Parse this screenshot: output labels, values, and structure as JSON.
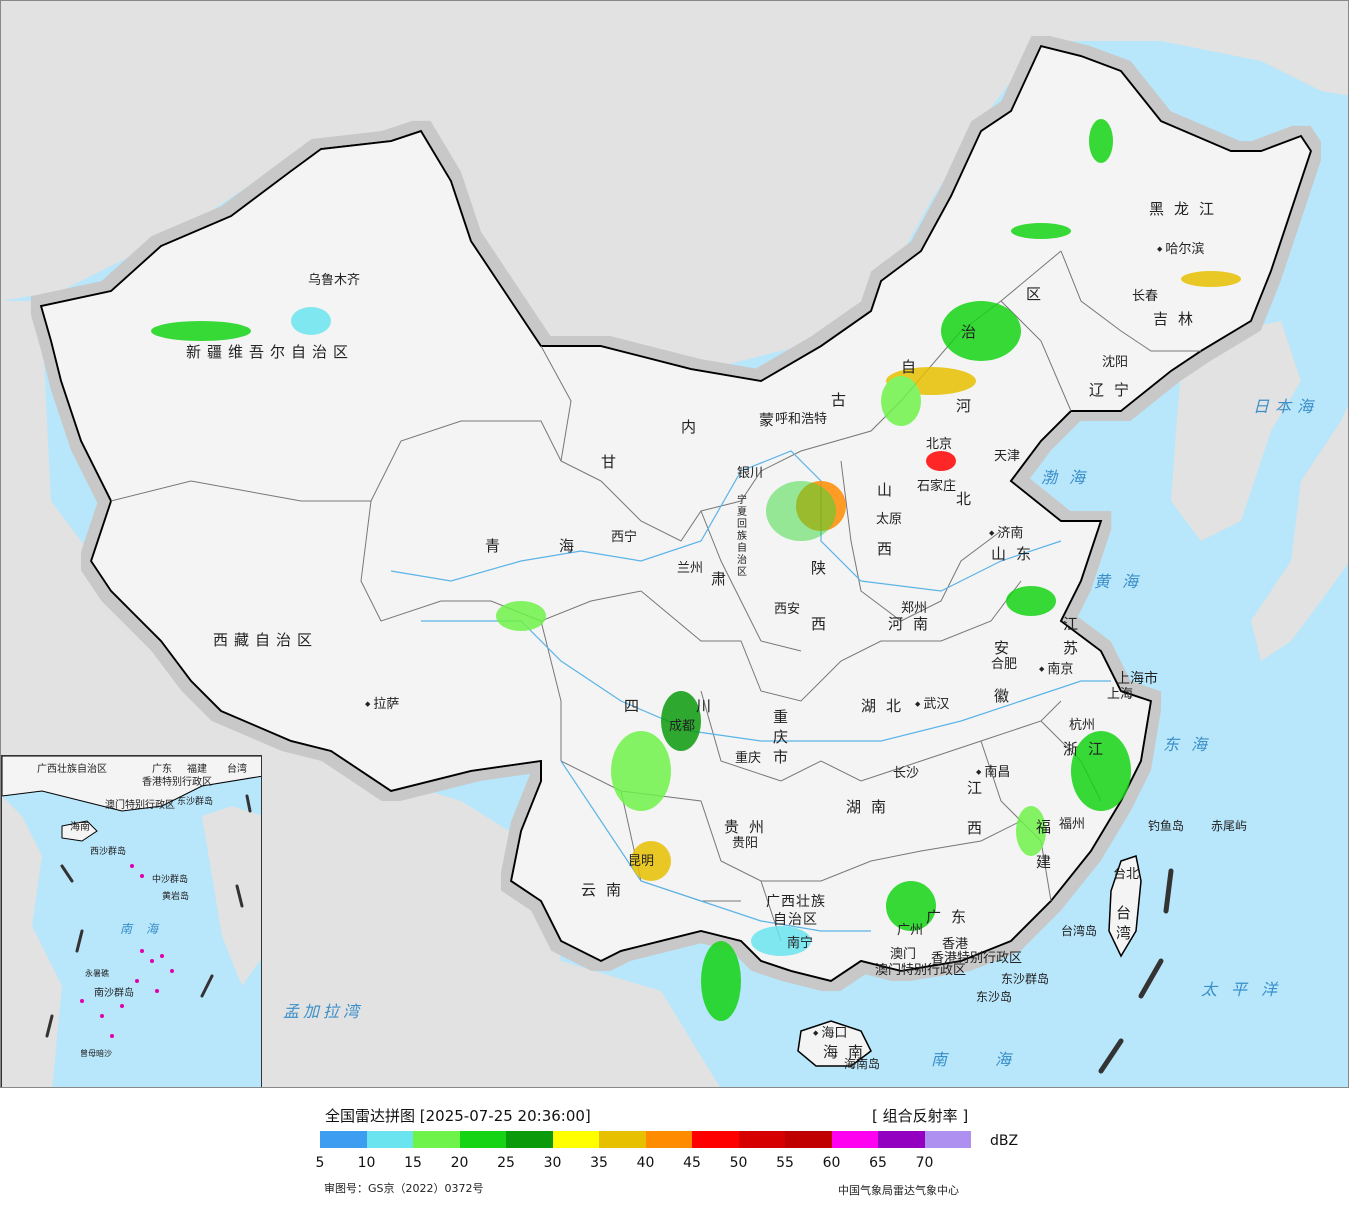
{
  "map": {
    "colors": {
      "ocean": "#b8e6fb",
      "land_china": "#f4f4f4",
      "land_foreign": "#e2e2e2",
      "border_national": "#000000",
      "border_province": "#777777",
      "river": "#5ab4e8"
    },
    "provinces": [
      {
        "id": "xinjiang",
        "label": "新疆维吾尔自治区"
      },
      {
        "id": "xizang",
        "label": "西藏自治区"
      },
      {
        "id": "qinghai-1",
        "label": "青"
      },
      {
        "id": "qinghai-2",
        "label": "海"
      },
      {
        "id": "gansu-1",
        "label": "甘"
      },
      {
        "id": "gansu-2",
        "label": "肃"
      },
      {
        "id": "nmg-1",
        "label": "内"
      },
      {
        "id": "nmg-2",
        "label": "蒙"
      },
      {
        "id": "nmg-3",
        "label": "古"
      },
      {
        "id": "nmg-4",
        "label": "自"
      },
      {
        "id": "nmg-5",
        "label": "治"
      },
      {
        "id": "nmg-6",
        "label": "区"
      },
      {
        "id": "heilongjiang",
        "label": "黑龙江"
      },
      {
        "id": "jilin",
        "label": "吉林"
      },
      {
        "id": "liaoning",
        "label": "辽宁"
      },
      {
        "id": "hebei-1",
        "label": "河"
      },
      {
        "id": "hebei-2",
        "label": "北"
      },
      {
        "id": "beijing",
        "label": "北京"
      },
      {
        "id": "tianjin",
        "label": "天津"
      },
      {
        "id": "shanxi-1",
        "label": "山"
      },
      {
        "id": "shanxi-2",
        "label": "西"
      },
      {
        "id": "shaanxi-1",
        "label": "陕"
      },
      {
        "id": "shaanxi-2",
        "label": "西"
      },
      {
        "id": "ningxia",
        "label": "宁夏回族自治区"
      },
      {
        "id": "shandong",
        "label": "山东"
      },
      {
        "id": "henan",
        "label": "河南"
      },
      {
        "id": "jiangsu-1",
        "label": "江"
      },
      {
        "id": "jiangsu-2",
        "label": "苏"
      },
      {
        "id": "anhui-1",
        "label": "安"
      },
      {
        "id": "anhui-2",
        "label": "徽"
      },
      {
        "id": "shanghai",
        "label": "上海市"
      },
      {
        "id": "hubei",
        "label": "湖北"
      },
      {
        "id": "sichuan-1",
        "label": "四"
      },
      {
        "id": "sichuan-2",
        "label": "川"
      },
      {
        "id": "chongqing",
        "label": "重庆市"
      },
      {
        "id": "zhejiang",
        "label": "浙江"
      },
      {
        "id": "jiangxi-1",
        "label": "江"
      },
      {
        "id": "jiangxi-2",
        "label": "西"
      },
      {
        "id": "hunan",
        "label": "湖南"
      },
      {
        "id": "guizhou",
        "label": "贵州"
      },
      {
        "id": "fujian-1",
        "label": "福"
      },
      {
        "id": "fujian-2",
        "label": "建"
      },
      {
        "id": "yunnan",
        "label": "云南"
      },
      {
        "id": "guangxi-1",
        "label": "广西壮族"
      },
      {
        "id": "guangxi-2",
        "label": "自治区"
      },
      {
        "id": "guangdong",
        "label": "广东"
      },
      {
        "id": "hk",
        "label": "香港特别行政区"
      },
      {
        "id": "macau",
        "label": "澳门特别行政区"
      },
      {
        "id": "hainan",
        "label": "海南"
      },
      {
        "id": "taiwan",
        "label": "台湾"
      }
    ],
    "cities": [
      {
        "id": "urumqi",
        "label": "乌鲁木齐"
      },
      {
        "id": "lhasa",
        "label": "拉萨"
      },
      {
        "id": "xining",
        "label": "西宁"
      },
      {
        "id": "lanzhou",
        "label": "兰州"
      },
      {
        "id": "yinchuan",
        "label": "银川"
      },
      {
        "id": "hohhot",
        "label": "呼和浩特"
      },
      {
        "id": "harbin",
        "label": "哈尔滨"
      },
      {
        "id": "changchun",
        "label": "长春"
      },
      {
        "id": "shenyang",
        "label": "沈阳"
      },
      {
        "id": "shijiazhuang",
        "label": "石家庄"
      },
      {
        "id": "taiyuan",
        "label": "太原"
      },
      {
        "id": "jinan",
        "label": "济南"
      },
      {
        "id": "zhengzhou",
        "label": "郑州"
      },
      {
        "id": "xian",
        "label": "西安"
      },
      {
        "id": "hefei",
        "label": "合肥"
      },
      {
        "id": "nanjing",
        "label": "南京"
      },
      {
        "id": "shanghai-city",
        "label": "上海"
      },
      {
        "id": "hangzhou",
        "label": "杭州"
      },
      {
        "id": "wuhan",
        "label": "武汉"
      },
      {
        "id": "chengdu",
        "label": "成都"
      },
      {
        "id": "chongqing-city",
        "label": "重庆"
      },
      {
        "id": "changsha",
        "label": "长沙"
      },
      {
        "id": "nanchang",
        "label": "南昌"
      },
      {
        "id": "guiyang",
        "label": "贵阳"
      },
      {
        "id": "fuzhou",
        "label": "福州"
      },
      {
        "id": "kunming",
        "label": "昆明"
      },
      {
        "id": "nanning",
        "label": "南宁"
      },
      {
        "id": "guangzhou",
        "label": "广州"
      },
      {
        "id": "hk-city",
        "label": "香港"
      },
      {
        "id": "macau-city",
        "label": "澳门"
      },
      {
        "id": "haikou",
        "label": "海口"
      },
      {
        "id": "taipei",
        "label": "台北"
      }
    ],
    "seas": [
      {
        "id": "bohai",
        "label": "渤海"
      },
      {
        "id": "yellow-sea",
        "label": "黄海"
      },
      {
        "id": "east-sea",
        "label": "东海"
      },
      {
        "id": "japan-sea",
        "label": "日本海"
      },
      {
        "id": "pacific",
        "label": "太平洋"
      },
      {
        "id": "south-sea",
        "label": "南海"
      },
      {
        "id": "bengal",
        "label": "孟加拉湾"
      }
    ],
    "islands": [
      {
        "id": "diaoyu",
        "label": "钓鱼岛"
      },
      {
        "id": "chiwei",
        "label": "赤尾屿"
      },
      {
        "id": "dongsha-islands",
        "label": "东沙群岛"
      },
      {
        "id": "dongsha-dao",
        "label": "东沙岛"
      },
      {
        "id": "hainan-island",
        "label": "海南岛"
      },
      {
        "id": "taiwan-island",
        "label": "台湾岛"
      }
    ],
    "inset": {
      "labels": [
        {
          "id": "i-guangxi",
          "label": "广西壮族自治区"
        },
        {
          "id": "i-guangdong",
          "label": "广东"
        },
        {
          "id": "i-fujian",
          "label": "福建"
        },
        {
          "id": "i-taiwan",
          "label": "台湾"
        },
        {
          "id": "i-hk",
          "label": "香港特别行政区"
        },
        {
          "id": "i-macau",
          "label": "澳门特别行政区"
        },
        {
          "id": "i-dongsha",
          "label": "东沙群岛"
        },
        {
          "id": "i-hainan",
          "label": "海南"
        },
        {
          "id": "i-xisha",
          "label": "西沙群岛"
        },
        {
          "id": "i-zhongsha",
          "label": "中沙群岛"
        },
        {
          "id": "i-huangyan",
          "label": "黄岩岛"
        },
        {
          "id": "i-nanhai",
          "label": "南海"
        },
        {
          "id": "i-nansha",
          "label": "南沙群岛"
        },
        {
          "id": "i-yongshu",
          "label": "永暑礁"
        },
        {
          "id": "i-zengmu",
          "label": "曾母暗沙"
        }
      ]
    }
  },
  "legend": {
    "title": "全国雷达拼图 [2025-07-25 20:36:00]",
    "mode": "[ 组合反射率 ]",
    "unit": "dBZ",
    "colors": [
      "#3d9df0",
      "#6ae4ee",
      "#6ef34a",
      "#14d414",
      "#0a9a0a",
      "#ffff00",
      "#e7c000",
      "#ff8c00",
      "#ff0000",
      "#d60000",
      "#c00000",
      "#ff00f0",
      "#9400c0",
      "#ad90f0"
    ],
    "ticks": [
      "5",
      "10",
      "15",
      "20",
      "25",
      "30",
      "35",
      "40",
      "45",
      "50",
      "55",
      "60",
      "65",
      "70"
    ],
    "approval": "审图号：GS京（2022）0372号",
    "credit": "中国气象局雷达气象中心"
  }
}
